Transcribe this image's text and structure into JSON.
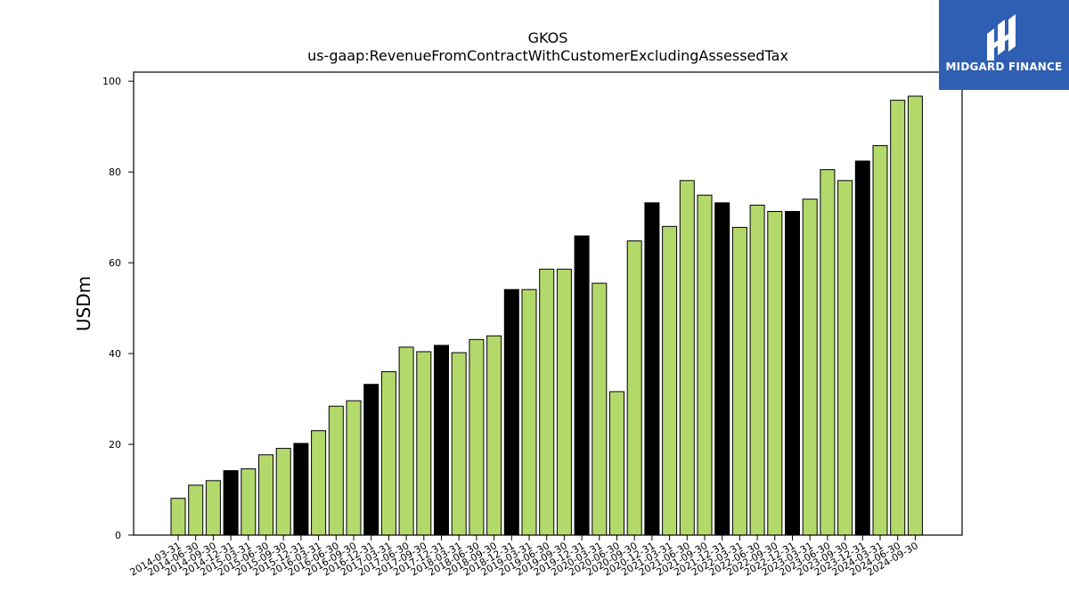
{
  "chart_data": {
    "type": "bar",
    "title": "GKOS",
    "subtitle": "us-gaap:RevenueFromContractWithCustomerExcludingAssessedTax",
    "ylabel": "USDm",
    "xlabel": "",
    "ylim": [
      0,
      102
    ],
    "yticks": [
      0,
      20,
      40,
      60,
      80,
      100
    ],
    "grid": false,
    "colors": {
      "bar": "#b3d96b",
      "highlight": "#000000",
      "edge": "#000000"
    },
    "categories": [
      "2014-03-31",
      "2014-06-30",
      "2014-09-30",
      "2014-12-31",
      "2015-03-31",
      "2015-06-30",
      "2015-09-30",
      "2015-12-31",
      "2016-03-31",
      "2016-06-30",
      "2016-09-30",
      "2016-12-31",
      "2017-03-31",
      "2017-06-30",
      "2017-09-30",
      "2017-12-31",
      "2018-03-31",
      "2018-06-30",
      "2018-09-30",
      "2018-12-31",
      "2019-03-31",
      "2019-06-30",
      "2019-09-30",
      "2019-12-31",
      "2020-03-31",
      "2020-06-30",
      "2020-09-30",
      "2020-12-31",
      "2021-03-31",
      "2021-06-30",
      "2021-09-30",
      "2021-12-31",
      "2022-03-31",
      "2022-06-30",
      "2022-09-30",
      "2022-12-31",
      "2023-03-31",
      "2023-06-30",
      "2023-09-30",
      "2023-12-31",
      "2024-03-31",
      "2024-06-30",
      "2024-09-30"
    ],
    "values": [
      8.1,
      11.0,
      12.0,
      14.2,
      14.6,
      17.7,
      19.1,
      20.2,
      23.0,
      28.4,
      29.6,
      33.2,
      36.0,
      41.4,
      40.4,
      41.8,
      40.2,
      43.1,
      43.9,
      54.1,
      54.1,
      58.6,
      58.6,
      65.9,
      55.5,
      31.6,
      64.8,
      73.2,
      68.0,
      78.1,
      74.9,
      73.2,
      67.8,
      72.7,
      71.3,
      71.3,
      74.0,
      80.5,
      78.1,
      82.4,
      85.8,
      95.8,
      96.7
    ],
    "highlighted": [
      false,
      false,
      false,
      true,
      false,
      false,
      false,
      true,
      false,
      false,
      false,
      true,
      false,
      false,
      false,
      true,
      false,
      false,
      false,
      true,
      false,
      false,
      false,
      true,
      false,
      false,
      false,
      true,
      false,
      false,
      false,
      true,
      false,
      false,
      false,
      true,
      false,
      false,
      false,
      true,
      false,
      false,
      false
    ]
  },
  "logo": {
    "text": "MIDGARD FINANCE",
    "color": "#2f5fb3"
  }
}
